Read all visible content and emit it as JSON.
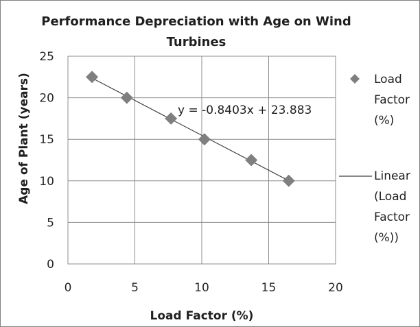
{
  "chart_data": {
    "type": "scatter",
    "title": "Performance Depreciation with Age on Wind Turbines",
    "xlabel": "Load Factor (%)",
    "ylabel": "Age of Plant (years)",
    "xlim": [
      0,
      20
    ],
    "ylim": [
      0,
      25
    ],
    "x_ticks": [
      0,
      5,
      10,
      15,
      20
    ],
    "y_ticks": [
      0,
      5,
      10,
      15,
      20,
      25
    ],
    "grid": true,
    "legend_position": "right",
    "series": [
      {
        "name": "Load Factor (%)",
        "name_lines": [
          "Load",
          "Factor",
          "(%)"
        ],
        "marker": "diamond",
        "color": "#7f7f7f",
        "x": [
          1.8,
          4.4,
          7.7,
          10.2,
          13.7,
          16.5
        ],
        "y": [
          22.5,
          20,
          17.5,
          15,
          12.5,
          10
        ]
      }
    ],
    "trendline": {
      "name": "Linear (Load Factor (%))",
      "name_lines": [
        "Linear",
        "(Load",
        "Factor",
        "(%))"
      ],
      "type": "linear",
      "slope": -0.8403,
      "intercept": 23.883,
      "x_range": [
        1.8,
        16.5
      ],
      "equation": "y = -0.8403x + 23.883",
      "color": "#404040"
    }
  }
}
